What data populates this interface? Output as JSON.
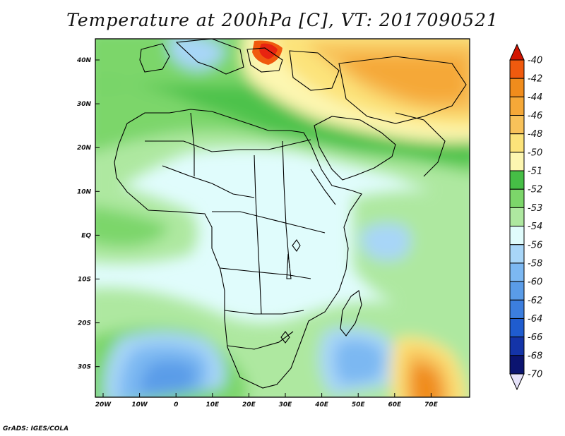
{
  "title": "Temperature at 200hPa [C], VT: 2017090521",
  "credit": "GrADS: IGES/COLA",
  "map": {
    "lat_ticks": [
      "40N",
      "30N",
      "20N",
      "10N",
      "EQ",
      "10S",
      "20S",
      "30S"
    ],
    "lon_ticks": [
      "20W",
      "10W",
      "0",
      "10E",
      "20E",
      "30E",
      "40E",
      "50E",
      "60E",
      "70E"
    ]
  },
  "colorbar": {
    "levels": [
      {
        "label": "-40",
        "color": "#e82410"
      },
      {
        "label": "-42",
        "color": "#f05a0e"
      },
      {
        "label": "-44",
        "color": "#f08c1c"
      },
      {
        "label": "-46",
        "color": "#f5a838"
      },
      {
        "label": "-48",
        "color": "#f8c25a"
      },
      {
        "label": "-50",
        "color": "#fce37a"
      },
      {
        "label": "-51",
        "color": "#fdf6b0"
      },
      {
        "label": "-52",
        "color": "#46be46"
      },
      {
        "label": "-53",
        "color": "#7cd66a"
      },
      {
        "label": "-54",
        "color": "#aee8a0"
      },
      {
        "label": "-56",
        "color": "#e0fcfc"
      },
      {
        "label": "-58",
        "color": "#a8d6f8"
      },
      {
        "label": "-60",
        "color": "#7cb8f2"
      },
      {
        "label": "-62",
        "color": "#5a9ce8"
      },
      {
        "label": "-64",
        "color": "#3c7ede"
      },
      {
        "label": "-66",
        "color": "#1f5ccf"
      },
      {
        "label": "-68",
        "color": "#1434a8"
      },
      {
        "label": "-70",
        "color": "#0b1470"
      }
    ],
    "top_arrow_color": "#d21400",
    "bottom_arrow_color": "#e6e2fa"
  }
}
